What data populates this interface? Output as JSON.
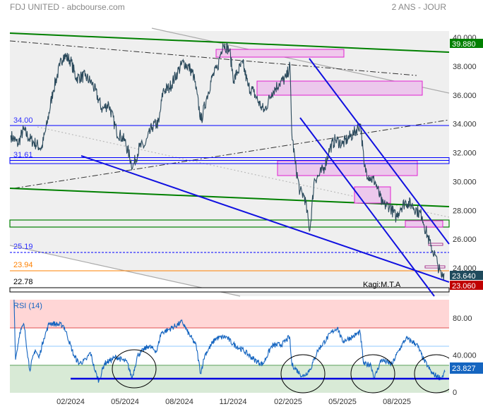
{
  "header": {
    "title": "FDJ UNITED - abcbourse.com",
    "period": "2 ANS - JOUR"
  },
  "colors": {
    "up_badge": "#008000",
    "last_badge": "#1f4a5c",
    "low_badge": "#c00000",
    "rsi": "#1565c0",
    "price_line": "#2b4a5c"
  },
  "annotation": "Kagi:M.T.A",
  "levels": [
    {
      "label": "34.00",
      "value": 34.0,
      "color": "#0000ff"
    },
    {
      "label": "31.61",
      "value": 31.61,
      "color": "#0000ff"
    },
    {
      "label": "25.19",
      "value": 25.19,
      "color": "#0000ff"
    },
    {
      "label": "23.94",
      "value": 23.94,
      "color": "#ff8000"
    },
    {
      "label": "22.78",
      "value": 22.78,
      "color": "#000000"
    }
  ],
  "chart_data": [
    {
      "type": "line",
      "title": "FDJ UNITED",
      "x_unit": "months since 01/2024",
      "x_ticks": [
        {
          "label": "02/2024",
          "m": 1
        },
        {
          "label": "05/2024",
          "m": 4
        },
        {
          "label": "08/2024",
          "m": 7
        },
        {
          "label": "11/2024",
          "m": 9.96
        },
        {
          "label": "02/2025",
          "m": 13
        },
        {
          "label": "05/2025",
          "m": 16
        },
        {
          "label": "08/2025",
          "m": 19
        }
      ],
      "y_ticks": [
        "40.000",
        "38.000",
        "36.000",
        "34.000",
        "32.000",
        "30.000",
        "28.000",
        "26.000",
        "24.000"
      ],
      "y_tick_values": [
        40,
        38,
        36,
        34,
        32,
        30,
        28,
        26,
        24
      ],
      "ylim": [
        21.8,
        41.7
      ],
      "badges": [
        {
          "label": "39.880",
          "value": 39.88,
          "kind": "high"
        },
        {
          "label": "23.640",
          "value": 23.64,
          "kind": "last"
        },
        {
          "label": "23.060",
          "value": 23.06,
          "kind": "low"
        }
      ],
      "series": [
        {
          "name": "Price",
          "points": [
            [
              -2.3,
              33.2
            ],
            [
              -1.9,
              32.6
            ],
            [
              -1.6,
              33.6
            ],
            [
              -1.3,
              33.0
            ],
            [
              -0.6,
              32.3
            ],
            [
              -0.3,
              34
            ],
            [
              0.03,
              36.3
            ],
            [
              0.4,
              38
            ],
            [
              0.61,
              38.8
            ],
            [
              1.0,
              38.4
            ],
            [
              1.3,
              37.2
            ],
            [
              1.8,
              37.3
            ],
            [
              2.2,
              36.8
            ],
            [
              2.75,
              35
            ],
            [
              3.1,
              35.4
            ],
            [
              3.53,
              33.5
            ],
            [
              4.0,
              32.8
            ],
            [
              4.43,
              31.0
            ],
            [
              4.8,
              32.4
            ],
            [
              5.1,
              32.5
            ],
            [
              5.5,
              33.8
            ],
            [
              5.87,
              34.1
            ],
            [
              6.1,
              36.3
            ],
            [
              6.45,
              36.5
            ],
            [
              6.9,
              37.6
            ],
            [
              7.23,
              38.3
            ],
            [
              7.6,
              37.8
            ],
            [
              7.8,
              37.3
            ],
            [
              8.2,
              34.2
            ],
            [
              8.5,
              35.8
            ],
            [
              8.8,
              37.2
            ],
            [
              9.1,
              37.9
            ],
            [
              9.4,
              39.6
            ],
            [
              9.77,
              39.1
            ],
            [
              10.0,
              37.0
            ],
            [
              10.2,
              37.6
            ],
            [
              10.5,
              38.2
            ],
            [
              10.8,
              36.6
            ],
            [
              11.1,
              36.2
            ],
            [
              11.5,
              35.2
            ],
            [
              11.7,
              34.9
            ],
            [
              12.1,
              36.2
            ],
            [
              12.5,
              36.8
            ],
            [
              12.9,
              37.2
            ],
            [
              13.1,
              38.1
            ],
            [
              13.2,
              33.4
            ],
            [
              13.4,
              31.2
            ],
            [
              13.65,
              29.3
            ],
            [
              13.9,
              29.0
            ],
            [
              14.2,
              26.6
            ],
            [
              14.45,
              30.2
            ],
            [
              14.7,
              30.4
            ],
            [
              15.0,
              31.0
            ],
            [
              15.3,
              32.3
            ],
            [
              15.6,
              32.9
            ],
            [
              16.0,
              32.6
            ],
            [
              16.3,
              33.0
            ],
            [
              16.6,
              33.3
            ],
            [
              17.0,
              34.0
            ],
            [
              17.2,
              31.0
            ],
            [
              17.5,
              30.3
            ],
            [
              17.8,
              30.0
            ],
            [
              18.2,
              28.4
            ],
            [
              18.6,
              28.3
            ],
            [
              18.96,
              27.5
            ],
            [
              19.2,
              28.2
            ],
            [
              19.5,
              28.6
            ],
            [
              19.8,
              28.4
            ],
            [
              20.1,
              28.0
            ],
            [
              20.4,
              27.6
            ],
            [
              20.5,
              27.0
            ],
            [
              20.7,
              26.2
            ],
            [
              20.87,
              25.5
            ],
            [
              21.1,
              24.9
            ],
            [
              21.26,
              24.2
            ],
            [
              21.45,
              23.4
            ],
            [
              21.6,
              23.64
            ]
          ]
        }
      ]
    },
    {
      "type": "line",
      "title": "RSI (14)",
      "y_ticks": [
        "80.00",
        "40.000",
        "0"
      ],
      "y_tick_values": [
        80,
        40,
        0
      ],
      "ylim": [
        0,
        100
      ],
      "zones": {
        "overbought": 70,
        "mid": 50,
        "oversold": 30
      },
      "support_level": 16,
      "badge": {
        "label": "23.827",
        "value": 23.827
      },
      "series": [
        {
          "name": "RSI",
          "points": [
            [
              -2.12,
              100
            ],
            [
              -2.04,
              35
            ],
            [
              -1.8,
              65
            ],
            [
              -1.57,
              73
            ],
            [
              -1.26,
              24
            ],
            [
              -0.95,
              46
            ],
            [
              -0.75,
              37
            ],
            [
              -0.48,
              58
            ],
            [
              -0.17,
              75
            ],
            [
              0.61,
              72
            ],
            [
              0.8,
              62
            ],
            [
              1.19,
              39
            ],
            [
              1.47,
              31
            ],
            [
              1.86,
              35
            ],
            [
              2.09,
              43
            ],
            [
              2.36,
              22
            ],
            [
              2.56,
              12
            ],
            [
              2.87,
              31
            ],
            [
              3.53,
              38
            ],
            [
              4.12,
              32
            ],
            [
              4.39,
              15
            ],
            [
              4.7,
              40
            ],
            [
              5.29,
              50
            ],
            [
              5.75,
              44
            ],
            [
              5.99,
              64
            ],
            [
              6.45,
              68
            ],
            [
              7.16,
              76
            ],
            [
              7.43,
              66
            ],
            [
              7.93,
              50
            ],
            [
              8.17,
              20
            ],
            [
              8.4,
              40
            ],
            [
              8.99,
              58
            ],
            [
              9.57,
              60
            ],
            [
              9.96,
              52
            ],
            [
              10.54,
              45
            ],
            [
              11.13,
              35
            ],
            [
              11.6,
              30
            ],
            [
              12.1,
              50
            ],
            [
              12.69,
              52
            ],
            [
              13.08,
              60
            ],
            [
              13.2,
              30
            ],
            [
              13.65,
              20
            ],
            [
              13.84,
              17
            ],
            [
              14.23,
              25
            ],
            [
              14.63,
              45
            ],
            [
              15.41,
              65
            ],
            [
              15.72,
              70
            ],
            [
              15.99,
              55
            ],
            [
              16.58,
              60
            ],
            [
              16.97,
              65
            ],
            [
              17.17,
              30
            ],
            [
              17.56,
              30
            ],
            [
              17.75,
              15
            ],
            [
              18.14,
              35
            ],
            [
              18.73,
              30
            ],
            [
              19.1,
              45
            ],
            [
              19.5,
              58
            ],
            [
              20.09,
              52
            ],
            [
              20.48,
              35
            ],
            [
              20.95,
              20
            ],
            [
              21.45,
              15
            ],
            [
              21.65,
              22
            ]
          ]
        }
      ]
    }
  ]
}
